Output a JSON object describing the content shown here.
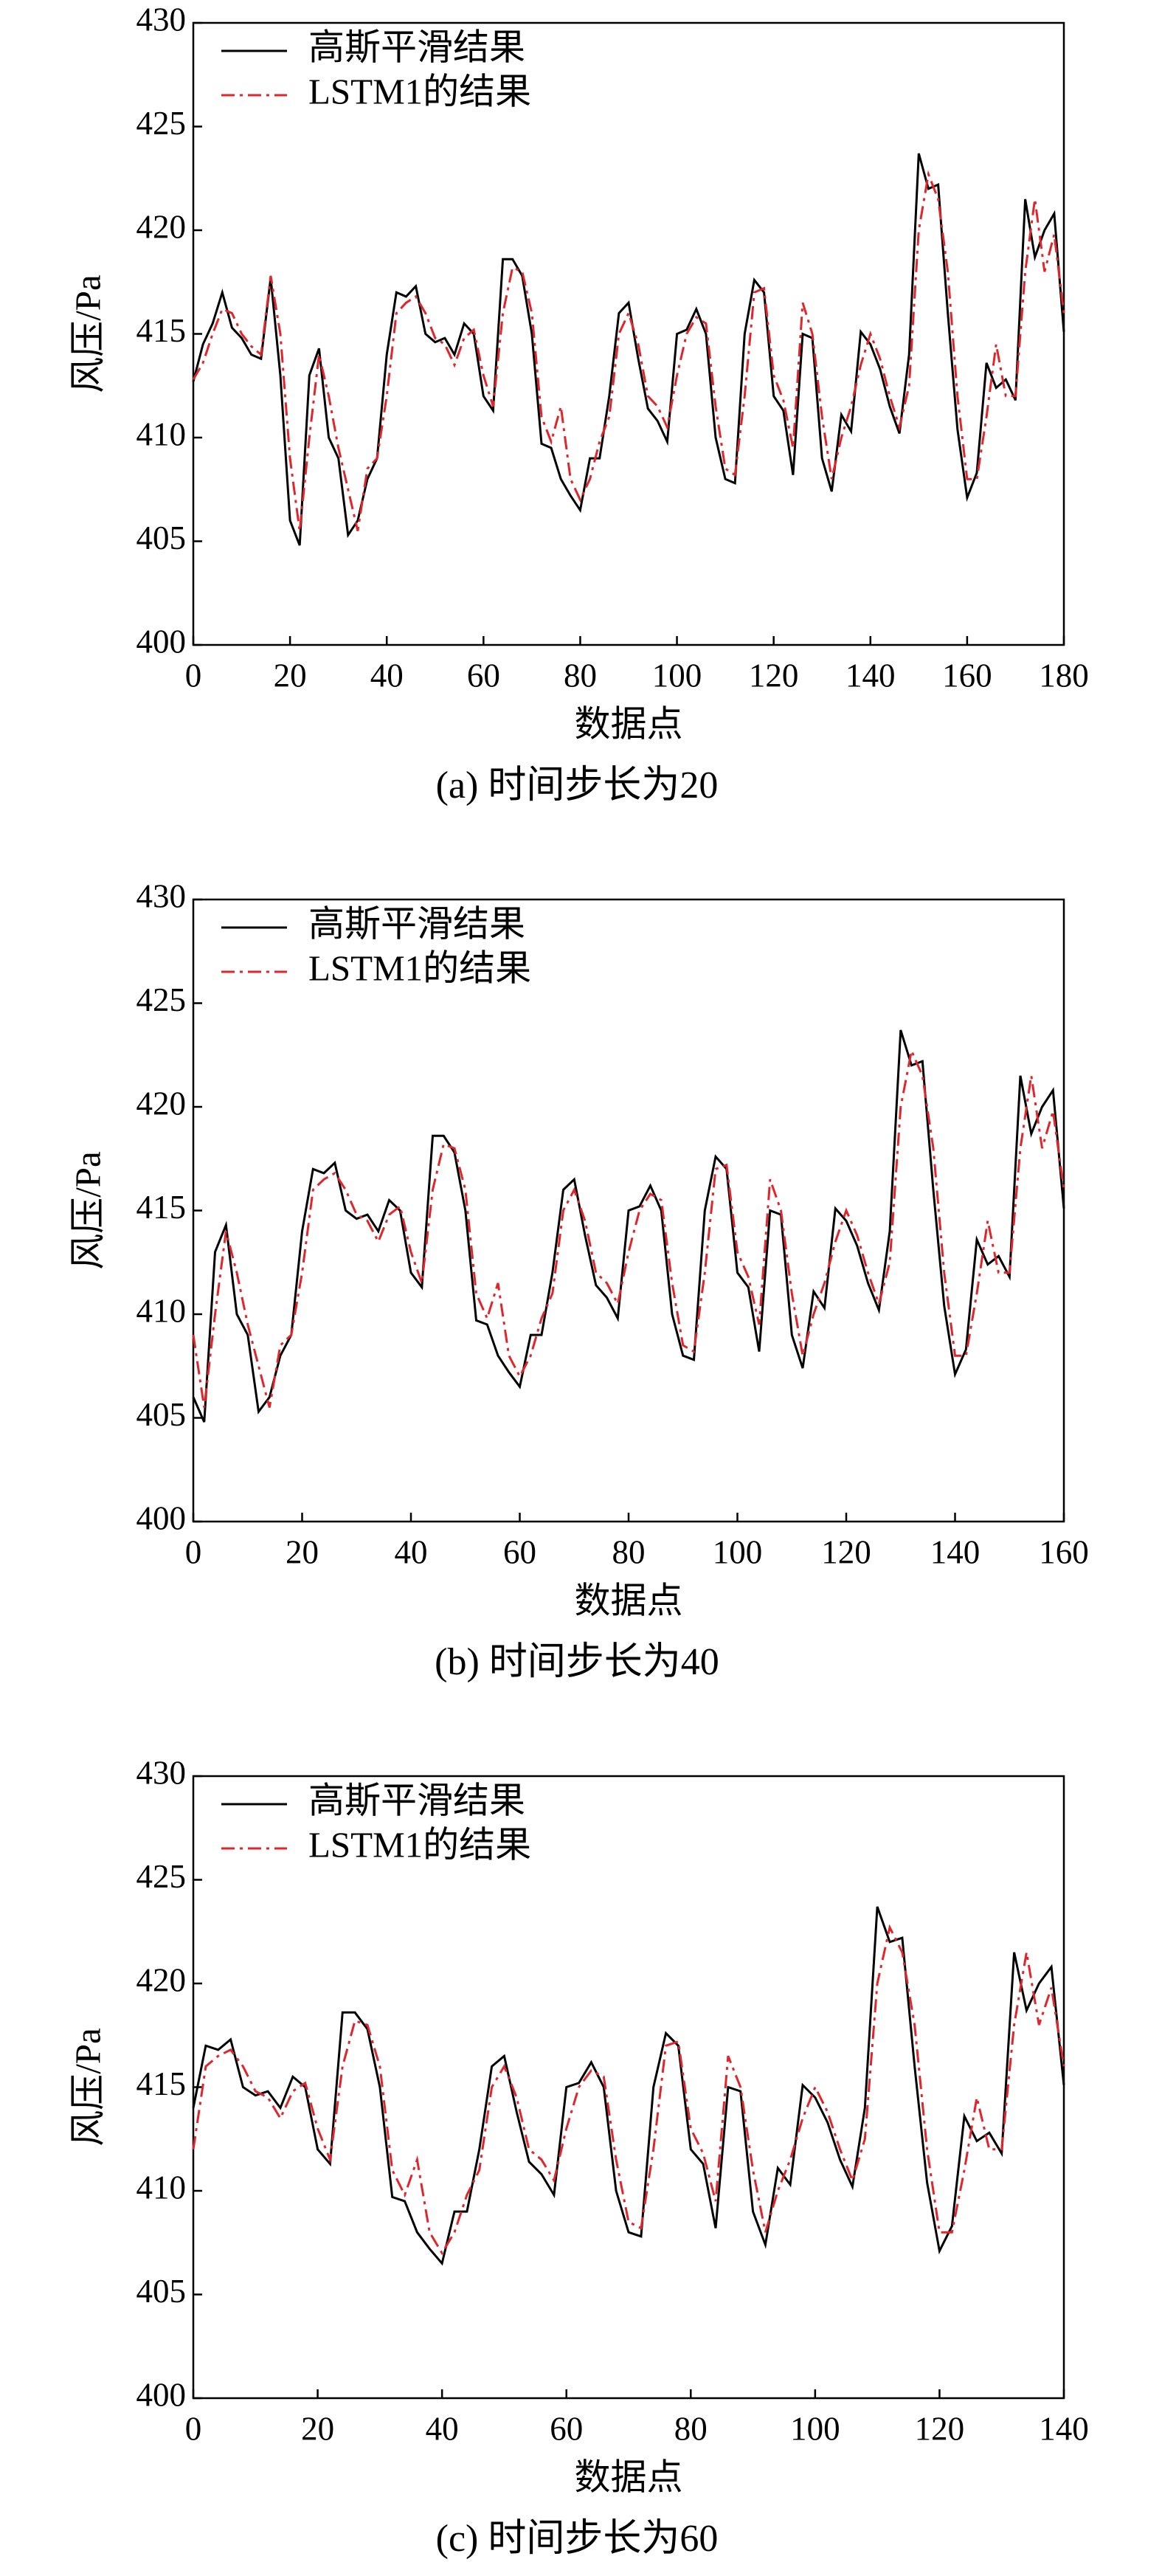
{
  "chart_data": [
    {
      "type": "line",
      "caption": "(a) 时间步长为20",
      "xlabel": "数据点",
      "ylabel": "风压/Pa",
      "x": [
        0,
        2,
        4,
        6,
        8,
        10,
        12,
        14,
        16,
        18,
        20,
        22,
        24,
        26,
        28,
        30,
        32,
        34,
        36,
        38,
        40,
        42,
        44,
        46,
        48,
        50,
        52,
        54,
        56,
        58,
        60,
        62,
        64,
        66,
        68,
        70,
        72,
        74,
        76,
        78,
        80,
        82,
        84,
        86,
        88,
        90,
        92,
        94,
        96,
        98,
        100,
        102,
        104,
        106,
        108,
        110,
        112,
        114,
        116,
        118,
        120,
        122,
        124,
        126,
        128,
        130,
        132,
        134,
        136,
        138,
        140,
        142,
        144,
        146,
        148,
        150,
        152,
        154,
        156,
        158,
        160,
        162,
        164,
        166,
        168,
        170,
        172,
        174,
        176,
        178,
        180
      ],
      "series": [
        {
          "name": "高斯平滑结果",
          "color": "#000000",
          "linestyle": "solid",
          "values": [
            412.7,
            414.5,
            415.5,
            417,
            415.3,
            414.8,
            414,
            413.8,
            417.7,
            413,
            406,
            404.8,
            413,
            414.3,
            410,
            409,
            405.3,
            406,
            408,
            409,
            414,
            417,
            416.8,
            417.3,
            415,
            414.6,
            414.8,
            414,
            415.5,
            415,
            412,
            411.3,
            418.6,
            418.6,
            417.8,
            415,
            409.7,
            409.5,
            408,
            407.2,
            406.5,
            409,
            409,
            412,
            416,
            416.5,
            413.8,
            411.4,
            410.8,
            409.8,
            415,
            415.2,
            416.2,
            415,
            410,
            408,
            407.8,
            415,
            417.6,
            417,
            412,
            411.3,
            408.2,
            415,
            414.8,
            409,
            407.4,
            411.1,
            410.3,
            415.1,
            414.5,
            413.3,
            411.5,
            410.2,
            414,
            423.7,
            422,
            422.2,
            416,
            410.4,
            407.1,
            408.3,
            413.6,
            412.4,
            412.8,
            411.8,
            421.5,
            418.7,
            420,
            420.8,
            415.1
          ]
        },
        {
          "name": "LSTM1的结果",
          "color": "#e0262b",
          "linestyle": "dash-dot",
          "values": [
            412.8,
            413.6,
            415,
            416.2,
            416,
            415,
            414.4,
            414,
            417.8,
            415,
            409,
            405.5,
            410,
            414,
            412,
            409.5,
            407.5,
            405.5,
            408.5,
            409,
            412,
            416,
            416.5,
            416.8,
            416,
            414.8,
            414.5,
            413.5,
            414.8,
            415.2,
            413,
            411.5,
            416,
            418.2,
            418,
            416,
            411,
            409.8,
            411.5,
            408,
            407,
            408,
            409.8,
            411,
            415,
            416,
            414.5,
            412,
            411.5,
            410.5,
            413,
            415,
            415.8,
            415.5,
            411.5,
            408.5,
            408.2,
            412,
            417,
            417.2,
            413,
            411.8,
            409.5,
            416.5,
            415,
            411,
            408,
            410,
            411.5,
            413.5,
            415,
            413.8,
            412,
            410.5,
            412.5,
            420,
            422.7,
            421.5,
            418,
            412,
            408,
            408,
            411,
            414.5,
            412,
            412,
            418,
            421.5,
            418,
            419.8,
            416
          ]
        }
      ],
      "xlim": [
        0,
        180
      ],
      "xticks": [
        0,
        20,
        40,
        60,
        80,
        100,
        120,
        140,
        160,
        180
      ],
      "ylim": [
        400,
        430
      ],
      "yticks": [
        400,
        405,
        410,
        415,
        420,
        425,
        430
      ],
      "legend": "upper left"
    },
    {
      "type": "line",
      "caption": "(b) 时间步长为40",
      "xlabel": "数据点",
      "ylabel": "风压/Pa",
      "x": [
        0,
        2,
        4,
        6,
        8,
        10,
        12,
        14,
        16,
        18,
        20,
        22,
        24,
        26,
        28,
        30,
        32,
        34,
        36,
        38,
        40,
        42,
        44,
        46,
        48,
        50,
        52,
        54,
        56,
        58,
        60,
        62,
        64,
        66,
        68,
        70,
        72,
        74,
        76,
        78,
        80,
        82,
        84,
        86,
        88,
        90,
        92,
        94,
        96,
        98,
        100,
        102,
        104,
        106,
        108,
        110,
        112,
        114,
        116,
        118,
        120,
        122,
        124,
        126,
        128,
        130,
        132,
        134,
        136,
        138,
        140,
        142,
        144,
        146,
        148,
        150,
        152,
        154,
        156,
        158,
        160
      ],
      "series": [
        {
          "name": "高斯平滑结果",
          "color": "#000000",
          "linestyle": "solid",
          "values": [
            406,
            404.8,
            413,
            414.3,
            410,
            409,
            405.3,
            406,
            408,
            409,
            414,
            417,
            416.8,
            417.3,
            415,
            414.6,
            414.8,
            414,
            415.5,
            415,
            412,
            411.3,
            418.6,
            418.6,
            417.8,
            415,
            409.7,
            409.5,
            408,
            407.2,
            406.5,
            409,
            409,
            412,
            416,
            416.5,
            413.8,
            411.4,
            410.8,
            409.8,
            415,
            415.2,
            416.2,
            415,
            410,
            408,
            407.8,
            415,
            417.6,
            417,
            412,
            411.3,
            408.2,
            415,
            414.8,
            409,
            407.4,
            411.1,
            410.3,
            415.1,
            414.5,
            413.3,
            411.5,
            410.2,
            414,
            423.7,
            422,
            422.2,
            416,
            410.4,
            407.1,
            408.3,
            413.6,
            412.4,
            412.8,
            411.8,
            421.5,
            418.7,
            420,
            420.8,
            415.1
          ]
        },
        {
          "name": "LSTM1的结果",
          "color": "#e0262b",
          "linestyle": "dash-dot",
          "values": [
            409,
            405.5,
            410,
            414,
            412,
            409.5,
            407.5,
            405.5,
            408.5,
            409,
            412,
            416,
            416.5,
            416.8,
            416,
            414.8,
            414.5,
            413.5,
            414.8,
            415.2,
            413,
            411.5,
            416,
            418.2,
            418,
            416,
            411,
            409.8,
            411.5,
            408,
            407,
            408,
            409.8,
            411,
            415,
            416,
            414.5,
            412,
            411.5,
            410.5,
            413,
            415,
            415.8,
            415.5,
            411.5,
            408.5,
            408.2,
            412,
            417,
            417.2,
            413,
            411.8,
            409.5,
            416.5,
            415,
            411,
            408,
            410,
            411.5,
            413.5,
            415,
            413.8,
            412,
            410.5,
            412.5,
            420,
            422.7,
            421.5,
            418,
            412,
            408,
            408,
            411,
            414.5,
            412,
            412,
            418,
            421.5,
            418,
            419.8,
            416
          ]
        }
      ],
      "xlim": [
        0,
        160
      ],
      "xticks": [
        0,
        20,
        40,
        60,
        80,
        100,
        120,
        140,
        160
      ],
      "ylim": [
        400,
        430
      ],
      "yticks": [
        400,
        405,
        410,
        415,
        420,
        425,
        430
      ],
      "legend": "upper left"
    },
    {
      "type": "line",
      "caption": "(c) 时间步长为60",
      "xlabel": "数据点",
      "ylabel": "风压/Pa",
      "x": [
        0,
        2,
        4,
        6,
        8,
        10,
        12,
        14,
        16,
        18,
        20,
        22,
        24,
        26,
        28,
        30,
        32,
        34,
        36,
        38,
        40,
        42,
        44,
        46,
        48,
        50,
        52,
        54,
        56,
        58,
        60,
        62,
        64,
        66,
        68,
        70,
        72,
        74,
        76,
        78,
        80,
        82,
        84,
        86,
        88,
        90,
        92,
        94,
        96,
        98,
        100,
        102,
        104,
        106,
        108,
        110,
        112,
        114,
        116,
        118,
        120,
        122,
        124,
        126,
        128,
        130,
        132,
        134,
        136,
        138,
        140
      ],
      "series": [
        {
          "name": "高斯平滑结果",
          "color": "#000000",
          "linestyle": "solid",
          "values": [
            414,
            417,
            416.8,
            417.3,
            415,
            414.6,
            414.8,
            414,
            415.5,
            415,
            412,
            411.3,
            418.6,
            418.6,
            417.8,
            415,
            409.7,
            409.5,
            408,
            407.2,
            406.5,
            409,
            409,
            412,
            416,
            416.5,
            413.8,
            411.4,
            410.8,
            409.8,
            415,
            415.2,
            416.2,
            415,
            410,
            408,
            407.8,
            415,
            417.6,
            417,
            412,
            411.3,
            408.2,
            415,
            414.8,
            409,
            407.4,
            411.1,
            410.3,
            415.1,
            414.5,
            413.3,
            411.5,
            410.2,
            414,
            423.7,
            422,
            422.2,
            416,
            410.4,
            407.1,
            408.3,
            413.6,
            412.4,
            412.8,
            411.8,
            421.5,
            418.7,
            420,
            420.8,
            415.1
          ]
        },
        {
          "name": "LSTM1的结果",
          "color": "#e0262b",
          "linestyle": "dash-dot",
          "values": [
            412,
            416,
            416.5,
            416.8,
            416,
            414.8,
            414.5,
            413.5,
            414.8,
            415.2,
            413,
            411.5,
            416,
            418.2,
            418,
            416,
            411,
            409.8,
            411.5,
            408,
            407,
            408,
            409.8,
            411,
            415,
            416,
            414.5,
            412,
            411.5,
            410.5,
            413,
            415,
            415.8,
            415.5,
            411.5,
            408.5,
            408.2,
            412,
            417,
            417.2,
            413,
            411.8,
            409.5,
            416.5,
            415,
            411,
            408,
            410,
            411.5,
            413.5,
            415,
            413.8,
            412,
            410.5,
            412.5,
            420,
            422.7,
            421.5,
            418,
            412,
            408,
            408,
            411,
            414.5,
            412,
            412,
            418,
            421.5,
            418,
            419.8,
            416
          ]
        }
      ],
      "xlim": [
        0,
        140
      ],
      "xticks": [
        0,
        20,
        40,
        60,
        80,
        100,
        120,
        140
      ],
      "ylim": [
        400,
        430
      ],
      "yticks": [
        400,
        405,
        410,
        415,
        420,
        425,
        430
      ],
      "legend": "upper left"
    }
  ]
}
